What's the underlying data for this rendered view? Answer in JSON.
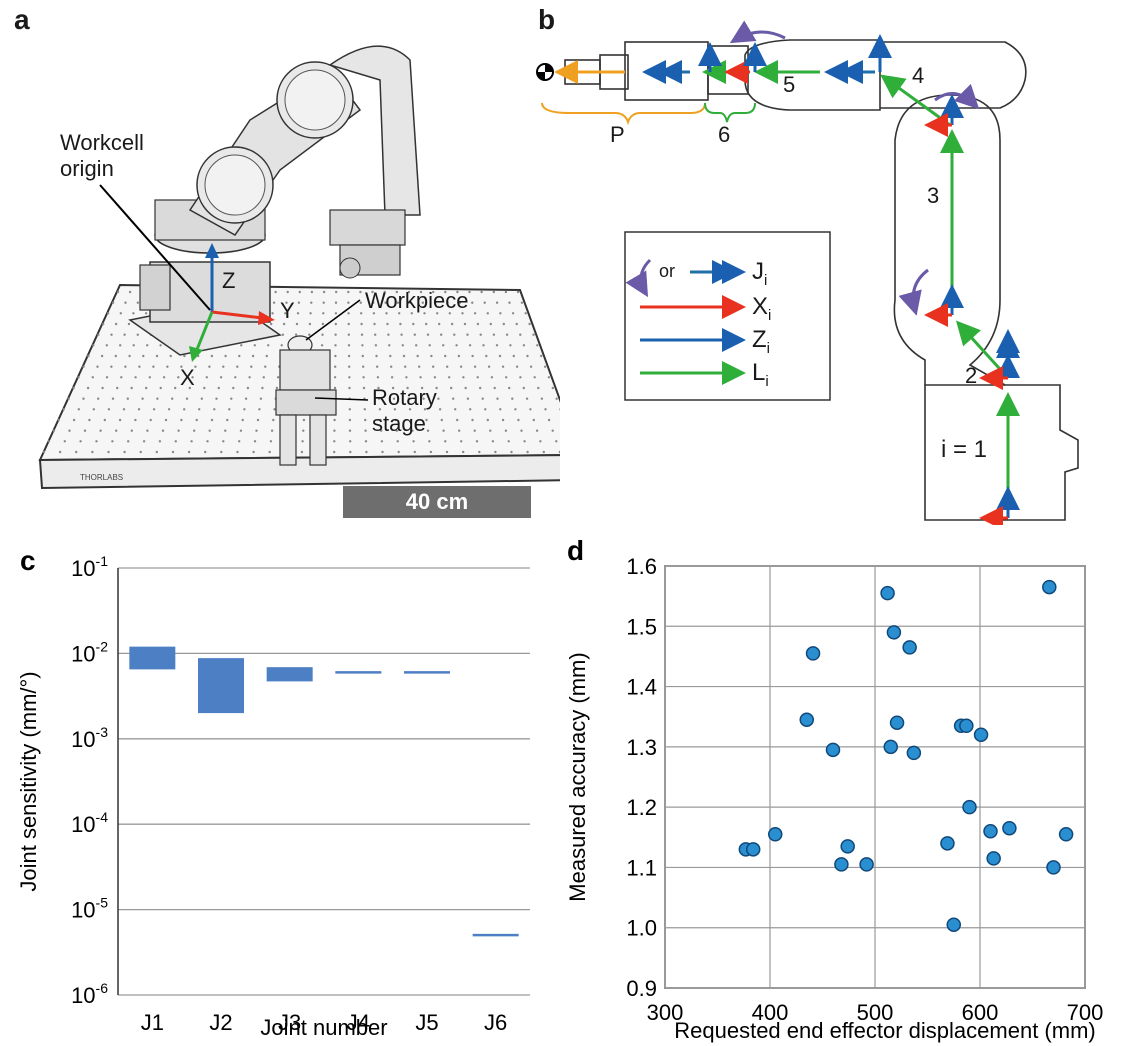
{
  "panels": {
    "a": {
      "letter": "a",
      "workcell_origin": [
        "Workcell",
        "origin"
      ],
      "axis_z": "Z",
      "axis_y": "Y",
      "axis_x": "X",
      "workpiece": "Workpiece",
      "rotary_stage": [
        "Rotary",
        "stage"
      ],
      "table_brand": "THORLABS",
      "scale_bar": "40 cm"
    },
    "b": {
      "letter": "b",
      "segment_labels": [
        "5",
        "4",
        "3",
        "2",
        "i = 1"
      ],
      "brace_p": "P",
      "brace_6": "6",
      "legend": {
        "or_text": "or",
        "entries": [
          {
            "symbol": "J",
            "sub": "i",
            "color": "#1f6fa8"
          },
          {
            "symbol": "X",
            "sub": "i",
            "color": "#e8321f"
          },
          {
            "symbol": "Z",
            "sub": "i",
            "color": "#1a5fb0"
          },
          {
            "symbol": "L",
            "sub": "i",
            "color": "#2fae3a"
          }
        ],
        "rotation_color": "#6a5aa8"
      }
    }
  },
  "chart_data": [
    {
      "panel": "c",
      "type": "bar",
      "ylabel": "Joint sensitivity (mm/°)",
      "xlabel": "Joint number",
      "yscale": "log",
      "ylim": [
        1e-06,
        0.1
      ],
      "ytick_values": [
        0.1,
        0.01,
        0.001,
        0.0001,
        1e-05,
        1e-06
      ],
      "ytick_labels": [
        {
          "base": "10",
          "exp": "-1"
        },
        {
          "base": "10",
          "exp": "-2"
        },
        {
          "base": "10",
          "exp": "-3"
        },
        {
          "base": "10",
          "exp": "-4"
        },
        {
          "base": "10",
          "exp": "-5"
        },
        {
          "base": "10",
          "exp": "-6"
        }
      ],
      "grid": "horizontal",
      "categories": [
        "J1",
        "J2",
        "J3",
        "J4",
        "J5",
        "J6"
      ],
      "ranges": [
        {
          "low": 0.0065,
          "high": 0.012
        },
        {
          "low": 0.002,
          "high": 0.0088
        },
        {
          "low": 0.0047,
          "high": 0.0069
        },
        {
          "low": 0.0062,
          "high": 0.0062
        },
        {
          "low": 0.0062,
          "high": 0.0062
        },
        {
          "low": 5.2e-06,
          "high": 5.2e-06
        }
      ],
      "bar_color": "#4d7fc4"
    },
    {
      "panel": "d",
      "type": "scatter",
      "xlabel": "Requested end effector displacement (mm)",
      "ylabel": "Measured accuracy (mm)",
      "xlim": [
        300,
        700
      ],
      "ylim": [
        0.9,
        1.6
      ],
      "xticks": [
        300,
        400,
        500,
        600,
        700
      ],
      "yticks": [
        0.9,
        1.0,
        1.1,
        1.2,
        1.3,
        1.4,
        1.5,
        1.6
      ],
      "ytick_labels": [
        "0.9",
        "1.0",
        "1.1",
        "1.2",
        "1.3",
        "1.4",
        "1.5",
        "1.6"
      ],
      "grid": true,
      "marker_color": "#2a8fd0",
      "x": [
        377,
        384,
        405,
        435,
        441,
        460,
        468,
        474,
        492,
        512,
        515,
        518,
        521,
        533,
        537,
        569,
        575,
        582,
        587,
        590,
        601,
        610,
        613,
        628,
        666,
        670,
        682
      ],
      "y": [
        1.13,
        1.13,
        1.155,
        1.345,
        1.455,
        1.295,
        1.105,
        1.135,
        1.105,
        1.555,
        1.3,
        1.49,
        1.34,
        1.465,
        1.29,
        1.14,
        1.005,
        1.335,
        1.335,
        1.2,
        1.32,
        1.16,
        1.115,
        1.165,
        1.565,
        1.1,
        1.155
      ]
    }
  ]
}
